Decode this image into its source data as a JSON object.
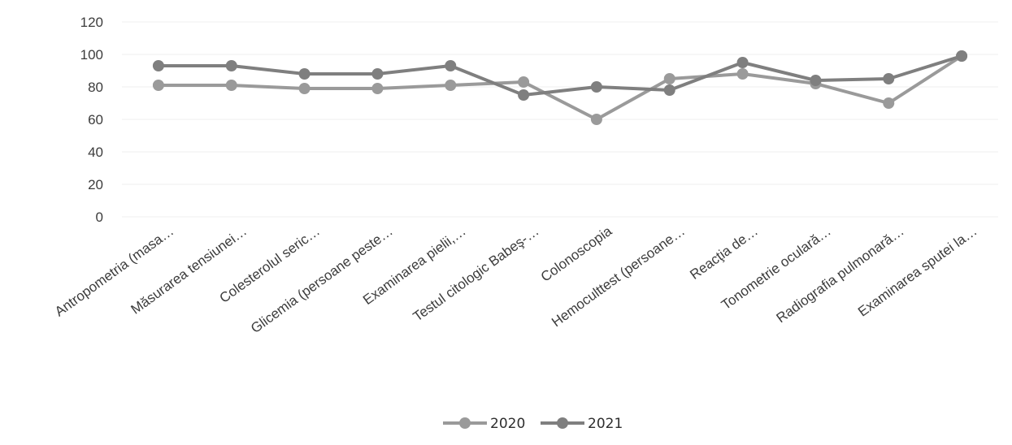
{
  "chart_data": {
    "type": "line",
    "categories": [
      "Antropometria (masa…",
      "Măsurarea tensiunei…",
      "Colesterolul seric…",
      "Glicemia (persoane peste…",
      "Examinarea pielii,…",
      "Testul citologic Babeş-…",
      "Colonoscopia",
      "Hemoculttest (persoane…",
      "Reacţia de…",
      "Tonometrie oculară…",
      "Radiografia pulmonară…",
      "Examinarea sputei la…"
    ],
    "y_ticks": [
      "0",
      "20",
      "40",
      "60",
      "80",
      "100",
      "120"
    ],
    "ylim": [
      0,
      120
    ],
    "grid": true,
    "legend_position": "bottom",
    "series": [
      {
        "name": "2020",
        "color": "#9a9a9a",
        "values": [
          81,
          81,
          79,
          79,
          81,
          83,
          60,
          85,
          88,
          82,
          70,
          99
        ]
      },
      {
        "name": "2021",
        "color": "#7f7f7f",
        "values": [
          93,
          93,
          88,
          88,
          93,
          75,
          80,
          78,
          95,
          84,
          85,
          99
        ]
      }
    ]
  }
}
